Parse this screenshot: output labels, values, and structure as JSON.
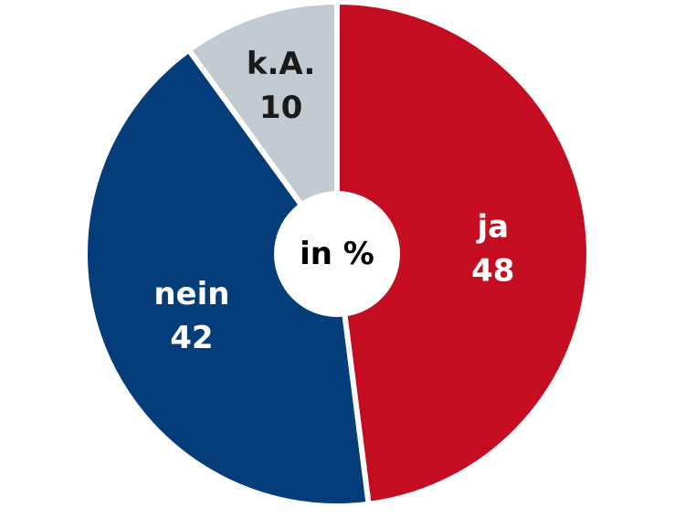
{
  "chart_data": {
    "type": "pie",
    "center_label": "in %",
    "slices": [
      {
        "label": "ja",
        "value": 48,
        "color": "#c40d20",
        "text_color": "#ffffff"
      },
      {
        "label": "nein",
        "value": 42,
        "color": "#053d7b",
        "text_color": "#ffffff"
      },
      {
        "label": "k.A.",
        "value": 10,
        "color": "#c2cbd2",
        "text_color": "#1a1a1a"
      }
    ]
  }
}
